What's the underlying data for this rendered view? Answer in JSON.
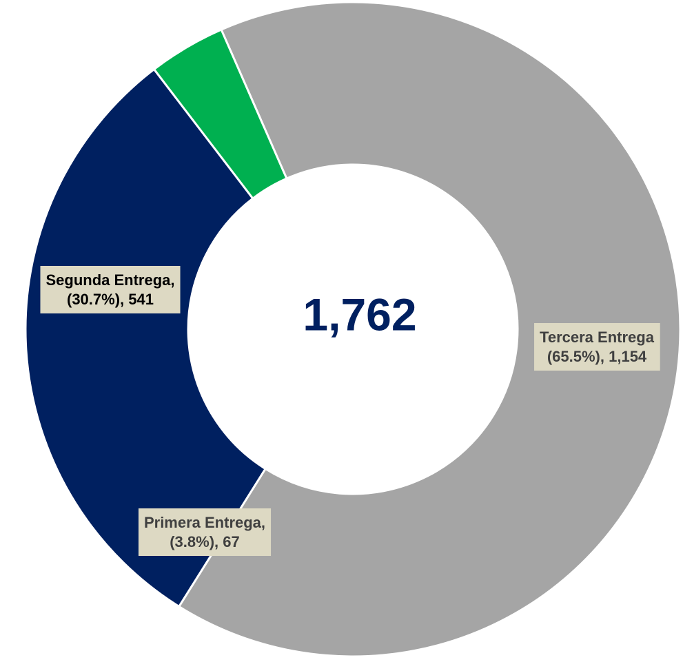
{
  "chart_data": {
    "type": "donut",
    "categories": [
      "Tercera Entrega",
      "Segunda Entrega,",
      "Primera Entrega,"
    ],
    "values": [
      1154,
      541,
      67
    ],
    "value_labels": [
      "1,154",
      "541",
      "67"
    ],
    "percents": [
      65.5,
      30.7,
      3.8
    ],
    "percent_labels": [
      "(65.5%),",
      "(30.7%),",
      "(3.8%),"
    ],
    "colors": [
      "#a5a5a5",
      "#002060",
      "#00b050"
    ],
    "total": 1762,
    "total_label": "1,762"
  }
}
